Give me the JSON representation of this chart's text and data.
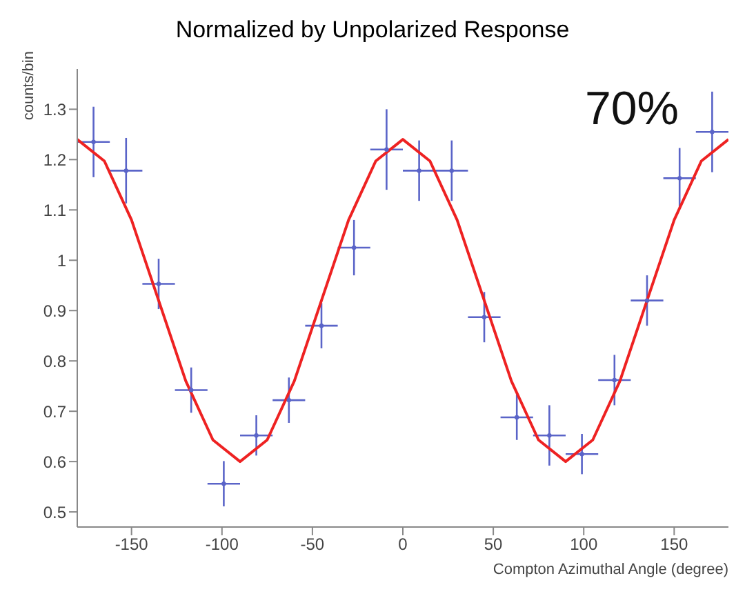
{
  "chart_data": {
    "type": "scatter",
    "title": "Normalized by Unpolarized Response",
    "xlabel": "Compton Azimuthal Angle (degree)",
    "ylabel": "counts/bin",
    "annotations": [
      "70%"
    ],
    "xlim": [
      -180,
      180
    ],
    "xticks": [
      -150,
      -100,
      -50,
      0,
      50,
      100,
      150
    ],
    "ylim": [
      0.47,
      1.38
    ],
    "yticks": [
      0.5,
      0.6,
      0.7,
      0.8,
      0.9,
      1,
      1.1,
      1.2,
      1.3
    ],
    "grid": false,
    "series": [
      {
        "color": "#5a64c8",
        "x": [
          -171,
          -153,
          -135,
          -117,
          -99,
          -81,
          -63,
          -45,
          -27,
          -9,
          9,
          27,
          45,
          63,
          81,
          99,
          117,
          135,
          153,
          171
        ],
        "values": [
          1.235,
          1.178,
          0.953,
          0.742,
          0.556,
          0.652,
          0.722,
          0.87,
          1.025,
          1.22,
          1.178,
          1.178,
          0.887,
          0.688,
          0.652,
          0.615,
          0.762,
          0.92,
          1.163,
          1.255
        ],
        "errors": [
          0.07,
          0.065,
          0.05,
          0.045,
          0.045,
          0.04,
          0.045,
          0.045,
          0.055,
          0.08,
          0.06,
          0.06,
          0.05,
          0.045,
          0.06,
          0.04,
          0.05,
          0.05,
          0.06,
          0.08
        ],
        "xerrors": [
          9,
          9,
          9,
          9,
          9,
          9,
          9,
          9,
          9,
          9,
          9,
          9,
          9,
          9,
          9,
          9,
          9,
          9,
          9,
          9
        ]
      },
      {
        "type": "line",
        "color": "#ee2222",
        "x": [
          -180,
          -165,
          -150,
          -135,
          -120,
          -105,
          -90,
          -75,
          -60,
          -45,
          -30,
          -15,
          0,
          15,
          30,
          45,
          60,
          75,
          90,
          105,
          120,
          135,
          150,
          165,
          180
        ],
        "values": [
          1.24,
          1.197,
          1.08,
          0.92,
          0.76,
          0.643,
          0.6,
          0.643,
          0.76,
          0.92,
          1.08,
          1.197,
          1.24,
          1.197,
          1.08,
          0.92,
          0.76,
          0.643,
          0.6,
          0.643,
          0.76,
          0.92,
          1.08,
          1.197,
          1.24
        ]
      }
    ]
  }
}
